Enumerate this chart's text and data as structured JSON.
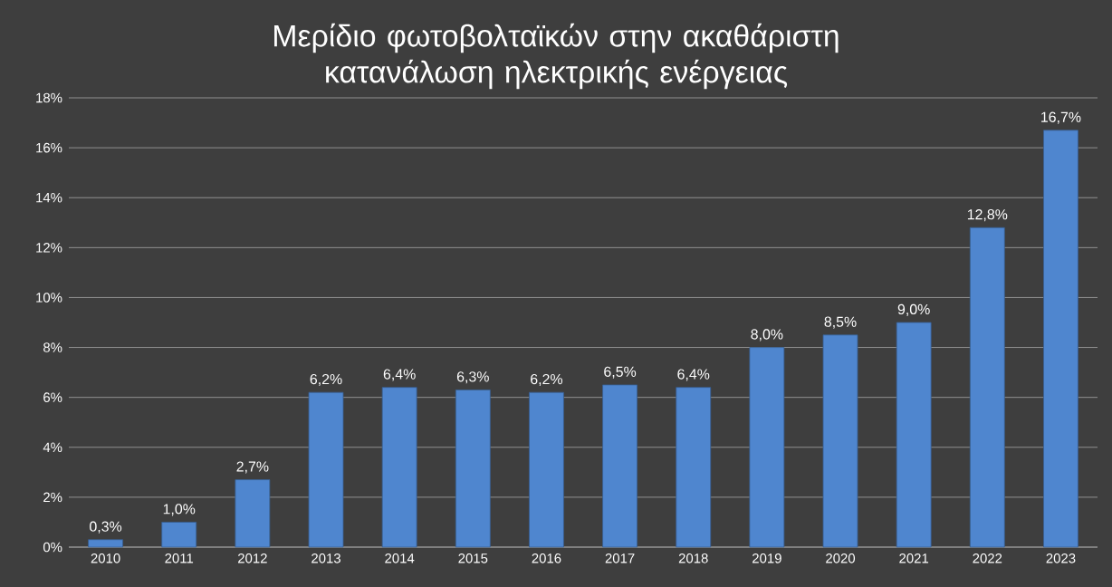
{
  "chart_data": {
    "type": "bar",
    "title": "Μερίδιο φωτοβολταϊκών στην ακαθάριστη κατανάλωση ηλεκτρικής ενέργειας",
    "categories": [
      "2010",
      "2011",
      "2012",
      "2013",
      "2014",
      "2015",
      "2016",
      "2017",
      "2018",
      "2019",
      "2020",
      "2021",
      "2022",
      "2023"
    ],
    "values": [
      0.3,
      1.0,
      2.7,
      6.2,
      6.4,
      6.3,
      6.2,
      6.5,
      6.4,
      8.0,
      8.5,
      9.0,
      12.8,
      16.7
    ],
    "value_labels": [
      "0,3%",
      "1,0%",
      "2,7%",
      "6,2%",
      "6,4%",
      "6,3%",
      "6,2%",
      "6,5%",
      "6,4%",
      "8,0%",
      "8,5%",
      "9,0%",
      "12,8%",
      "16,7%"
    ],
    "color": "#4f86cf",
    "ylim": [
      0,
      18
    ],
    "yticks": [
      {
        "value": 0,
        "label": "0%"
      },
      {
        "value": 2,
        "label": "2%"
      },
      {
        "value": 4,
        "label": "4%"
      },
      {
        "value": 6,
        "label": "6%"
      },
      {
        "value": 8,
        "label": "8%"
      },
      {
        "value": 10,
        "label": "10%"
      },
      {
        "value": 12,
        "label": "12%"
      },
      {
        "value": 14,
        "label": "14%"
      },
      {
        "value": 16,
        "label": "16%"
      },
      {
        "value": 18,
        "label": "18%"
      }
    ],
    "grid": "y"
  }
}
